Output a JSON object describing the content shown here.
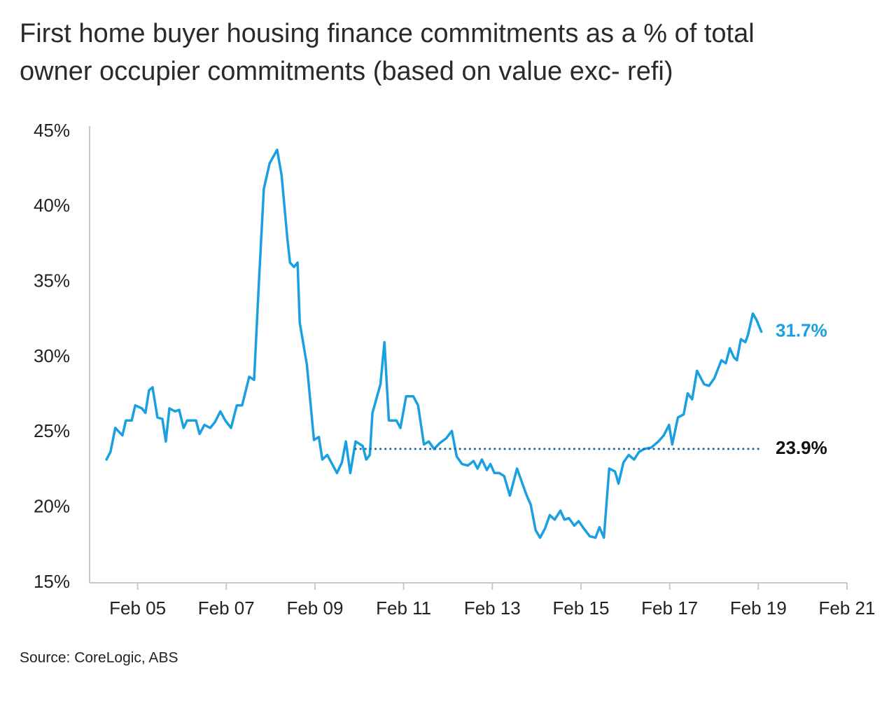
{
  "chart_data": {
    "type": "line",
    "title": [
      "First home buyer housing finance commitments as a % of total",
      "owner occupier commitments (based on value exc- refi)"
    ],
    "source": "Source: CoreLogic, ABS",
    "xlim": [
      2004.0,
      2021.083
    ],
    "xticks": [
      {
        "value": 2005.083,
        "label": "Feb 05"
      },
      {
        "value": 2007.083,
        "label": "Feb 07"
      },
      {
        "value": 2009.083,
        "label": "Feb 09"
      },
      {
        "value": 2011.083,
        "label": "Feb 11"
      },
      {
        "value": 2013.083,
        "label": "Feb 13"
      },
      {
        "value": 2015.083,
        "label": "Feb 15"
      },
      {
        "value": 2017.083,
        "label": "Feb 17"
      },
      {
        "value": 2019.083,
        "label": "Feb 19"
      },
      {
        "value": 2021.083,
        "label": "Feb 21"
      }
    ],
    "ylim": [
      15,
      45
    ],
    "yticks": [
      {
        "value": 15,
        "label": "15%"
      },
      {
        "value": 20,
        "label": "20%"
      },
      {
        "value": 25,
        "label": "25%"
      },
      {
        "value": 30,
        "label": "30%"
      },
      {
        "value": 35,
        "label": "35%"
      },
      {
        "value": 40,
        "label": "40%"
      },
      {
        "value": 45,
        "label": "45%"
      }
    ],
    "series": [
      {
        "color": "#1a9fe0",
        "style": "solid",
        "end_label": "31.7%",
        "x": [
          2004.38,
          2004.47,
          2004.58,
          2004.74,
          2004.82,
          2004.95,
          2005.03,
          2005.18,
          2005.26,
          2005.34,
          2005.42,
          2005.53,
          2005.64,
          2005.72,
          2005.8,
          2005.93,
          2006.02,
          2006.12,
          2006.2,
          2006.4,
          2006.48,
          2006.59,
          2006.72,
          2006.83,
          2006.95,
          2007.06,
          2007.19,
          2007.32,
          2007.44,
          2007.6,
          2007.71,
          2007.82,
          2007.93,
          2008.06,
          2008.23,
          2008.33,
          2008.46,
          2008.52,
          2008.61,
          2008.69,
          2008.74,
          2008.9,
          2009.06,
          2009.17,
          2009.25,
          2009.36,
          2009.47,
          2009.58,
          2009.69,
          2009.78,
          2009.88,
          2010.0,
          2010.16,
          2010.24,
          2010.32,
          2010.38,
          2010.56,
          2010.65,
          2010.75,
          2010.92,
          2011.01,
          2011.14,
          2011.3,
          2011.41,
          2011.54,
          2011.65,
          2011.77,
          2011.9,
          2012.04,
          2012.17,
          2012.28,
          2012.4,
          2012.53,
          2012.66,
          2012.75,
          2012.85,
          2012.96,
          2013.04,
          2013.13,
          2013.24,
          2013.35,
          2013.48,
          2013.64,
          2013.75,
          2013.86,
          2013.95,
          2014.06,
          2014.16,
          2014.27,
          2014.38,
          2014.49,
          2014.62,
          2014.71,
          2014.81,
          2014.93,
          2015.03,
          2015.15,
          2015.28,
          2015.41,
          2015.5,
          2015.6,
          2015.72,
          2015.85,
          2015.93,
          2016.04,
          2016.16,
          2016.28,
          2016.39,
          2016.51,
          2016.67,
          2016.83,
          2016.95,
          2017.07,
          2017.14,
          2017.27,
          2017.4,
          2017.49,
          2017.59,
          2017.7,
          2017.86,
          2017.97,
          2018.09,
          2018.25,
          2018.35,
          2018.44,
          2018.53,
          2018.6,
          2018.69,
          2018.79,
          2018.85,
          2018.96,
          2019.04,
          2019.15
        ],
        "values": [
          23.2,
          23.7,
          25.3,
          24.8,
          25.8,
          25.8,
          26.8,
          26.6,
          26.3,
          27.8,
          28.0,
          26.0,
          25.9,
          24.4,
          26.6,
          26.4,
          26.5,
          25.3,
          25.8,
          25.8,
          24.9,
          25.5,
          25.3,
          25.7,
          26.4,
          25.8,
          25.3,
          26.8,
          26.8,
          28.7,
          28.5,
          35.1,
          41.2,
          42.9,
          43.8,
          42.1,
          37.9,
          36.3,
          36.0,
          36.3,
          32.3,
          29.5,
          24.5,
          24.7,
          23.2,
          23.5,
          22.9,
          22.3,
          23.0,
          24.4,
          22.3,
          24.4,
          24.1,
          23.2,
          23.5,
          26.3,
          28.2,
          31.0,
          25.8,
          25.8,
          25.3,
          27.4,
          27.4,
          26.8,
          24.2,
          24.4,
          23.9,
          24.3,
          24.6,
          25.1,
          23.4,
          22.9,
          22.8,
          23.1,
          22.6,
          23.2,
          22.5,
          22.9,
          22.3,
          22.3,
          22.1,
          20.8,
          22.6,
          21.7,
          20.8,
          20.2,
          18.5,
          18.0,
          18.6,
          19.5,
          19.2,
          19.8,
          19.2,
          19.3,
          18.8,
          19.1,
          18.6,
          18.1,
          18.0,
          18.7,
          18.0,
          22.6,
          22.4,
          21.6,
          23.0,
          23.5,
          23.2,
          23.7,
          23.9,
          24.0,
          24.4,
          24.8,
          25.5,
          24.2,
          26.0,
          26.2,
          27.6,
          27.2,
          29.1,
          28.2,
          28.1,
          28.6,
          29.8,
          29.6,
          30.6,
          30.0,
          29.8,
          31.2,
          31.0,
          31.5,
          32.9,
          32.5,
          31.7
        ]
      },
      {
        "color": "#1565a8",
        "style": "dotted",
        "end_label": "23.9%",
        "label_color": "#111111",
        "x": [
          2010.0,
          2019.15
        ],
        "values": [
          23.9,
          23.9
        ]
      }
    ]
  }
}
